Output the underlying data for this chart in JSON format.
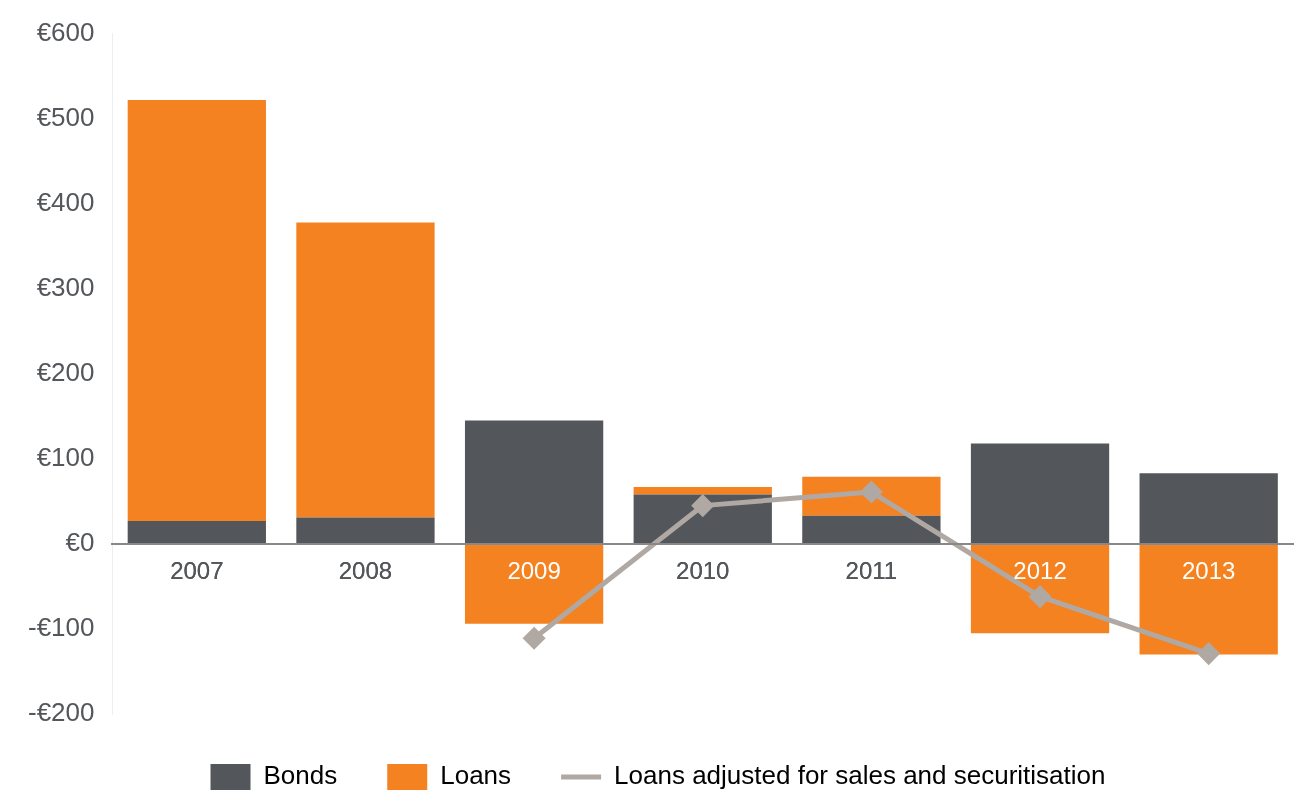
{
  "chart_data": {
    "type": "bar",
    "stacked": true,
    "categories": [
      "2007",
      "2008",
      "2009",
      "2010",
      "2011",
      "2012",
      "2013"
    ],
    "series": [
      {
        "name": "Bonds",
        "color": "#53565a",
        "values": [
          27,
          31,
          145,
          58,
          33,
          118,
          83
        ]
      },
      {
        "name": "Loans",
        "color": "#f58220",
        "values": [
          495,
          347,
          -94,
          9,
          46,
          -105,
          -130
        ]
      },
      {
        "name": "Loans adjusted for sales and securitisation",
        "type": "line",
        "color": "#b0a8a3",
        "marker": "diamond",
        "values": [
          null,
          null,
          -111,
          45,
          61,
          -62,
          -129
        ]
      }
    ],
    "ylim": [
      -200,
      600
    ],
    "yticks": [
      {
        "value": -200,
        "label": "-€200"
      },
      {
        "value": -100,
        "label": "-€100"
      },
      {
        "value": 0,
        "label": "€0"
      },
      {
        "value": 100,
        "label": "€100"
      },
      {
        "value": 200,
        "label": "€200"
      },
      {
        "value": 300,
        "label": "€300"
      },
      {
        "value": 400,
        "label": "€400"
      },
      {
        "value": 500,
        "label": "€500"
      },
      {
        "value": 600,
        "label": "€600"
      }
    ],
    "grid": false,
    "legend": "bottom"
  }
}
